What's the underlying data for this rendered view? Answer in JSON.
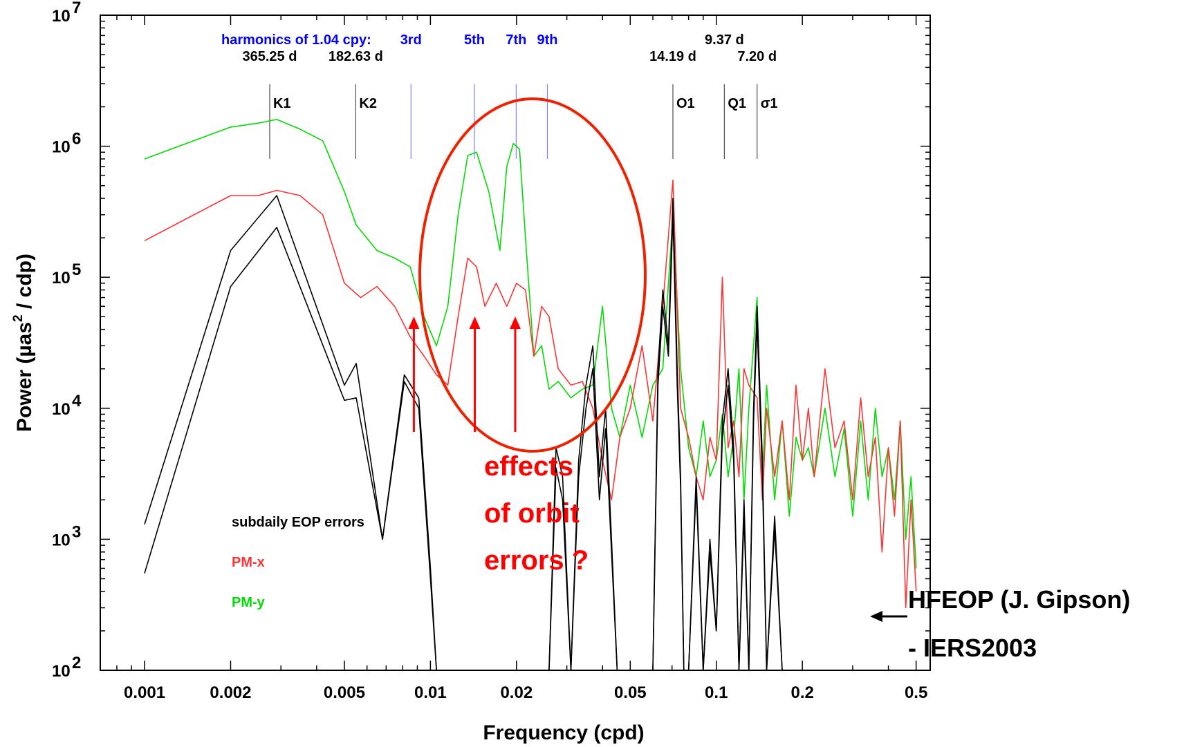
{
  "chart_data": {
    "type": "line",
    "title": "",
    "xlabel": "Frequency (cpd)",
    "ylabel_parts": [
      "Power (µas",
      "2",
      " / cdp)"
    ],
    "x_scale": "log",
    "y_scale": "log",
    "xlim": [
      0.0007,
      0.56
    ],
    "ylim": [
      100,
      10000000
    ],
    "x_ticks": [
      {
        "value": 0.001,
        "label": "0.001"
      },
      {
        "value": 0.002,
        "label": "0.002"
      },
      {
        "value": 0.005,
        "label": "0.005"
      },
      {
        "value": 0.01,
        "label": "0.01"
      },
      {
        "value": 0.02,
        "label": "0.02"
      },
      {
        "value": 0.05,
        "label": "0.05"
      },
      {
        "value": 0.1,
        "label": "0.1"
      },
      {
        "value": 0.2,
        "label": "0.2"
      },
      {
        "value": 0.5,
        "label": "0.5"
      }
    ],
    "y_ticks": [
      {
        "value": 100,
        "base": "10",
        "exp": "2"
      },
      {
        "value": 1000,
        "base": "10",
        "exp": "3"
      },
      {
        "value": 10000,
        "base": "10",
        "exp": "4"
      },
      {
        "value": 100000,
        "base": "10",
        "exp": "5"
      },
      {
        "value": 1000000,
        "base": "10",
        "exp": "6"
      },
      {
        "value": 10000000,
        "base": "10",
        "exp": "7"
      }
    ],
    "harmonics_label": "harmonics of 1.04 cpy:",
    "markers": [
      {
        "name": "K1",
        "x": 0.00274,
        "top_label": "365.25 d",
        "color": "#000000"
      },
      {
        "name": "K2",
        "x": 0.00548,
        "top_label": "182.63 d",
        "color": "#000000"
      },
      {
        "name": "",
        "x": 0.00855,
        "top_label": "3rd",
        "color": "#0000ff"
      },
      {
        "name": "",
        "x": 0.01425,
        "top_label": "5th",
        "color": "#0000ff"
      },
      {
        "name": "",
        "x": 0.01995,
        "top_label": "7th",
        "color": "#0000ff"
      },
      {
        "name": "",
        "x": 0.02565,
        "top_label": "9th",
        "color": "#0000ff"
      },
      {
        "name": "O1",
        "x": 0.0705,
        "top_label": "14.19 d",
        "color": "#000000"
      },
      {
        "name": "Q1",
        "x": 0.1067,
        "top_label": "9.37 d",
        "color": "#000000"
      },
      {
        "name": "σ1",
        "x": 0.1389,
        "top_label": "7.20 d",
        "color": "#000000"
      }
    ],
    "series": [
      {
        "name": "PM-y",
        "color": "#00dd00",
        "x": [
          0.001,
          0.002,
          0.0025,
          0.0029,
          0.0035,
          0.0042,
          0.005,
          0.0055,
          0.0065,
          0.0075,
          0.0085,
          0.0095,
          0.0105,
          0.0115,
          0.0125,
          0.0135,
          0.0145,
          0.016,
          0.0175,
          0.0185,
          0.0195,
          0.0205,
          0.0215,
          0.023,
          0.0245,
          0.026,
          0.028,
          0.031,
          0.034,
          0.037,
          0.04,
          0.043,
          0.046,
          0.05,
          0.055,
          0.06,
          0.065,
          0.0705,
          0.075,
          0.08,
          0.085,
          0.09,
          0.095,
          0.1,
          0.105,
          0.11,
          0.115,
          0.12,
          0.125,
          0.13,
          0.1389,
          0.145,
          0.15,
          0.16,
          0.17,
          0.18,
          0.19,
          0.2,
          0.21,
          0.22,
          0.24,
          0.26,
          0.28,
          0.3,
          0.32,
          0.34,
          0.36,
          0.38,
          0.4,
          0.42,
          0.44,
          0.46,
          0.48,
          0.5
        ],
        "values": [
          800000,
          1400000,
          1500000,
          1600000,
          1350000,
          1100000,
          450000,
          250000,
          160000,
          140000,
          120000,
          50000,
          30000,
          60000,
          300000,
          850000,
          900000,
          450000,
          160000,
          700000,
          1050000,
          950000,
          200000,
          25000,
          30000,
          14000,
          16000,
          12000,
          14000,
          15000,
          60000,
          10000,
          6000,
          15000,
          6000,
          15000,
          20000,
          300000,
          20000,
          5000,
          3000,
          8000,
          3000,
          4000,
          9000,
          3000,
          6000,
          20000,
          2000,
          10000,
          70000,
          3000,
          15000,
          2000,
          8000,
          1500,
          6000,
          4000,
          5000,
          3000,
          10000,
          3000,
          7000,
          1500,
          8000,
          2000,
          10000,
          3000,
          5000,
          2000,
          8000,
          1000,
          3000,
          600
        ]
      },
      {
        "name": "PM-x",
        "color": "#ff3333",
        "x": [
          0.001,
          0.002,
          0.0025,
          0.0029,
          0.0035,
          0.0042,
          0.005,
          0.0057,
          0.0065,
          0.0075,
          0.0085,
          0.0095,
          0.0105,
          0.0115,
          0.0125,
          0.0135,
          0.0145,
          0.0155,
          0.017,
          0.0185,
          0.02,
          0.0215,
          0.023,
          0.0245,
          0.026,
          0.028,
          0.031,
          0.034,
          0.037,
          0.04,
          0.043,
          0.046,
          0.05,
          0.055,
          0.06,
          0.065,
          0.0705,
          0.075,
          0.08,
          0.085,
          0.09,
          0.095,
          0.1,
          0.105,
          0.11,
          0.115,
          0.12,
          0.125,
          0.13,
          0.1389,
          0.145,
          0.15,
          0.16,
          0.17,
          0.18,
          0.19,
          0.2,
          0.21,
          0.22,
          0.24,
          0.26,
          0.28,
          0.3,
          0.32,
          0.34,
          0.36,
          0.38,
          0.4,
          0.42,
          0.44,
          0.46,
          0.48,
          0.5
        ],
        "values": [
          190000,
          420000,
          420000,
          460000,
          420000,
          300000,
          90000,
          70000,
          85000,
          60000,
          35000,
          25000,
          18000,
          15000,
          50000,
          140000,
          120000,
          60000,
          90000,
          60000,
          90000,
          80000,
          25000,
          60000,
          50000,
          20000,
          15000,
          16000,
          10000,
          4000,
          2000,
          6000,
          10000,
          30000,
          8000,
          60000,
          550000,
          10000,
          6000,
          3000,
          2000,
          6000,
          4000,
          100000,
          5000,
          8000,
          3000,
          20000,
          15000,
          12000,
          2000,
          10000,
          3000,
          8000,
          2000,
          15000,
          4000,
          10000,
          3000,
          20000,
          5000,
          8000,
          2000,
          12000,
          3000,
          6000,
          800,
          5000,
          1500,
          8000,
          300,
          2000,
          400
        ]
      },
      {
        "name": "subdaily EOP errors",
        "color": "#000000",
        "x": [
          0.001,
          0.002,
          0.0029,
          0.005,
          0.0055,
          0.0068,
          0.0081,
          0.0091,
          0.01,
          0.0105,
          0.026,
          0.0275,
          0.029,
          0.031,
          0.033,
          0.035,
          0.037,
          0.039,
          0.041,
          0.043,
          0.045,
          0.06,
          0.0625,
          0.065,
          0.068,
          0.0705,
          0.073,
          0.075,
          0.077,
          0.08,
          0.085,
          0.09,
          0.095,
          0.1,
          0.105,
          0.11,
          0.115,
          0.12,
          0.125,
          0.13,
          0.135,
          0.1389,
          0.145,
          0.15,
          0.16,
          0.17,
          0.18
        ],
        "values": [
          1300,
          160000,
          420000,
          15000,
          22000,
          1000,
          18000,
          12000,
          600,
          100,
          100,
          5000,
          3000,
          100,
          4000,
          15000,
          30000,
          3000,
          10000,
          1000,
          100,
          100,
          20000,
          80000,
          30000,
          400000,
          20000,
          3000,
          100,
          100,
          3000,
          100,
          1000,
          200,
          8000,
          20000,
          5000,
          100,
          2000,
          100,
          10000,
          60000,
          4000,
          100,
          1500,
          100,
          100
        ]
      },
      {
        "name": "",
        "color": "#000000",
        "x": [
          0.001,
          0.002,
          0.0029,
          0.005,
          0.0055,
          0.0068,
          0.0081,
          0.0091,
          0.01,
          0.0105,
          0.026,
          0.0275,
          0.029,
          0.031,
          0.033,
          0.035,
          0.037,
          0.039,
          0.041,
          0.043,
          0.045,
          0.06,
          0.0625,
          0.065,
          0.068,
          0.0705,
          0.073,
          0.075,
          0.077,
          0.08,
          0.085,
          0.09,
          0.095,
          0.1,
          0.105,
          0.11,
          0.115,
          0.12,
          0.125,
          0.13,
          0.135,
          0.1389,
          0.145,
          0.15,
          0.16,
          0.17,
          0.18
        ],
        "values": [
          550,
          85000,
          240000,
          11500,
          12000,
          1000,
          16000,
          10000,
          500,
          100,
          100,
          3500,
          2000,
          100,
          3000,
          10000,
          20000,
          2000,
          7000,
          800,
          100,
          100,
          15000,
          60000,
          25000,
          300000,
          15000,
          2500,
          100,
          100,
          2500,
          100,
          800,
          200,
          6000,
          15000,
          4000,
          100,
          1500,
          100,
          8000,
          45000,
          3000,
          100,
          1200,
          100,
          100
        ]
      }
    ],
    "legend": [
      {
        "label": "subdaily EOP errors",
        "color": "#000000"
      },
      {
        "label": "PM-x",
        "color": "#ff3333"
      },
      {
        "label": "PM-y",
        "color": "#00dd00"
      }
    ],
    "annotations": {
      "orbit_lines": [
        "effects",
        "of  orbit",
        "errors ?"
      ],
      "orbit_arrow_x": [
        0.00875,
        0.0143,
        0.0198
      ],
      "hfeop_lines": [
        "HFEOP (J. Gipson)",
        "- IERS2003"
      ],
      "hfeop_arrow_point": {
        "x": 0.175,
        "y": 250
      }
    },
    "grid": false,
    "legend_position": "bottom-left"
  }
}
